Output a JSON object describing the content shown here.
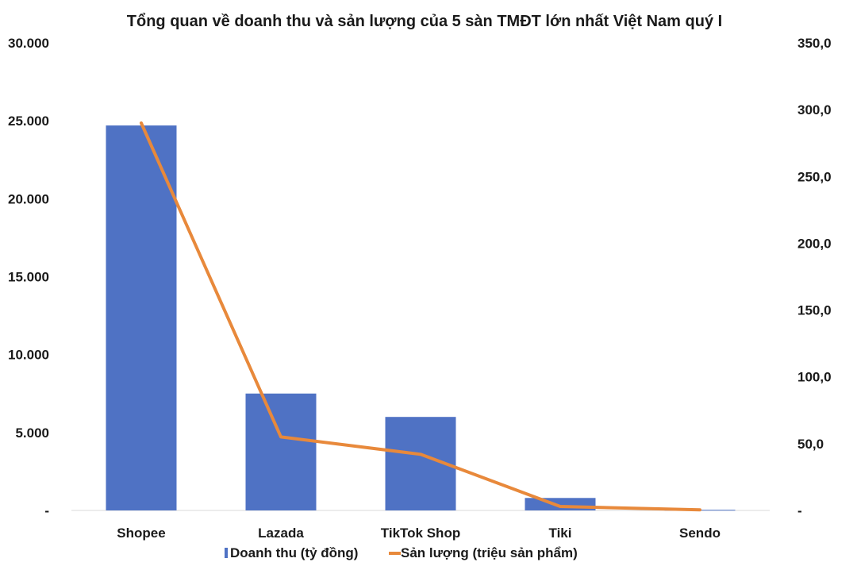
{
  "chart_data": {
    "type": "bar",
    "title": "Tổng quan về doanh thu và sản lượng của 5 sàn TMĐT lớn nhất Việt Nam quý I",
    "categories": [
      "Shopee",
      "Lazada",
      "TikTok Shop",
      "Tiki",
      "Sendo"
    ],
    "series": [
      {
        "name": "Doanh thu (tỷ đồng)",
        "type": "bar",
        "axis": "left",
        "color": "#4f72c4",
        "values": [
          24700,
          7500,
          6000,
          800,
          40
        ]
      },
      {
        "name": "Sản lượng (triệu sản phẩm)",
        "type": "line",
        "axis": "right",
        "color": "#e8893b",
        "values": [
          290.0,
          55.0,
          42.0,
          3.0,
          0.5
        ]
      }
    ],
    "y_left": {
      "ylim": [
        0,
        30000
      ],
      "tick_labels": [
        "-",
        "5.000",
        "10.000",
        "15.000",
        "20.000",
        "25.000",
        "30.000"
      ]
    },
    "y_right": {
      "ylim": [
        0,
        350
      ],
      "tick_labels": [
        "-",
        "50,0",
        "100,0",
        "150,0",
        "200,0",
        "250,0",
        "300,0",
        "350,0"
      ]
    },
    "grid": false,
    "legend_position": "bottom"
  }
}
